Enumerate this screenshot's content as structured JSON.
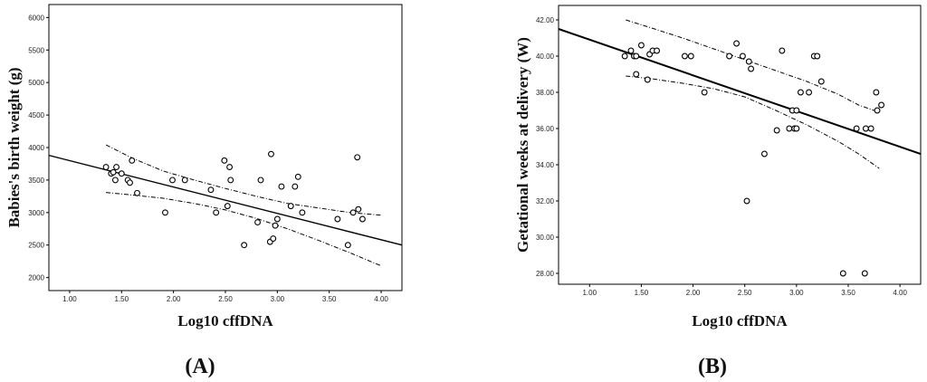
{
  "chart_data": [
    {
      "type": "scatter",
      "panel_label": "(A)",
      "xlabel": "Log10 cffDNA",
      "ylabel": "Babies's birth weight (g)",
      "xlim": [
        0.8,
        4.2
      ],
      "ylim": [
        1800,
        6200
      ],
      "xticks": [
        "1.00",
        "1.50",
        "2.00",
        "2.50",
        "3.00",
        "3.50",
        "4.00"
      ],
      "yticks": [
        "2000",
        "2500",
        "3000",
        "3500",
        "4000",
        "4500",
        "5000",
        "5500",
        "6000"
      ],
      "x": [
        1.35,
        1.4,
        1.42,
        1.45,
        1.44,
        1.5,
        1.56,
        1.58,
        1.6,
        1.65,
        1.92,
        1.99,
        2.11,
        2.36,
        2.41,
        2.49,
        2.52,
        2.54,
        2.55,
        2.68,
        2.81,
        2.84,
        2.93,
        2.94,
        2.96,
        2.98,
        3.0,
        3.04,
        3.13,
        3.17,
        3.2,
        3.24,
        3.58,
        3.68,
        3.73,
        3.77,
        3.78,
        3.82
      ],
      "y": [
        3700,
        3600,
        3620,
        3700,
        3500,
        3600,
        3500,
        3460,
        3800,
        3300,
        3000,
        3500,
        3500,
        3350,
        3000,
        3800,
        3100,
        3700,
        3500,
        2500,
        2850,
        3500,
        2550,
        3900,
        2600,
        2800,
        2900,
        3400,
        3100,
        3400,
        3550,
        3000,
        2900,
        2500,
        3000,
        3850,
        3050,
        2900
      ],
      "fit": {
        "x": [
          0.8,
          4.2
        ],
        "y": [
          3880,
          2500
        ]
      },
      "ci_upper": {
        "x": [
          1.35,
          1.6,
          1.9,
          2.2,
          2.5,
          2.8,
          3.1,
          3.4,
          3.7,
          4.0
        ],
        "y": [
          4040,
          3840,
          3640,
          3500,
          3370,
          3250,
          3140,
          3070,
          3000,
          2960
        ]
      },
      "ci_lower": {
        "x": [
          1.35,
          1.6,
          1.9,
          2.2,
          2.5,
          2.8,
          3.1,
          3.4,
          3.7,
          4.0
        ],
        "y": [
          3310,
          3270,
          3220,
          3140,
          3040,
          2910,
          2750,
          2570,
          2380,
          2180
        ]
      }
    },
    {
      "type": "scatter",
      "panel_label": "(B)",
      "xlabel": "Log10 cffDNA",
      "ylabel": "Getational weeks at delivery (W)",
      "xlim": [
        0.7,
        4.2
      ],
      "ylim": [
        27.4,
        42.8
      ],
      "xticks": [
        "1.00",
        "1.50",
        "2.00",
        "2.50",
        "3.00",
        "3.50",
        "4.00"
      ],
      "yticks": [
        "28.00",
        "30.00",
        "32.00",
        "34.00",
        "36.00",
        "38.00",
        "40.00",
        "42.00"
      ],
      "x": [
        1.34,
        1.4,
        1.43,
        1.45,
        1.45,
        1.5,
        1.56,
        1.58,
        1.61,
        1.65,
        1.92,
        1.98,
        2.11,
        2.35,
        2.42,
        2.48,
        2.52,
        2.54,
        2.56,
        2.69,
        2.81,
        2.86,
        2.93,
        2.96,
        2.98,
        3.0,
        3.0,
        3.04,
        3.12,
        3.17,
        3.2,
        3.24,
        3.45,
        3.58,
        3.66,
        3.67,
        3.72,
        3.77,
        3.78,
        3.82
      ],
      "y": [
        40.0,
        40.3,
        40.0,
        40.0,
        39.0,
        40.6,
        38.7,
        40.1,
        40.3,
        40.3,
        40.0,
        40.0,
        38.0,
        40.0,
        40.7,
        40.0,
        32.0,
        39.7,
        39.3,
        34.6,
        35.9,
        40.3,
        36.0,
        37.0,
        36.0,
        37.0,
        36.0,
        38.0,
        38.0,
        40.0,
        40.0,
        38.6,
        28.0,
        36.0,
        28.0,
        36.0,
        36.0,
        38.0,
        37.0,
        37.3
      ],
      "fit": {
        "x": [
          0.7,
          4.2
        ],
        "y": [
          41.5,
          34.6
        ]
      },
      "ci_upper": {
        "x": [
          1.35,
          1.6,
          1.9,
          2.2,
          2.5,
          2.8,
          3.1,
          3.4,
          3.6,
          3.8
        ],
        "y": [
          42.0,
          41.55,
          41.0,
          40.4,
          39.8,
          39.2,
          38.6,
          37.9,
          37.3,
          36.9
        ]
      },
      "ci_lower": {
        "x": [
          1.35,
          1.6,
          1.9,
          2.2,
          2.5,
          2.8,
          3.1,
          3.4,
          3.6,
          3.8
        ],
        "y": [
          38.9,
          38.75,
          38.5,
          38.2,
          37.75,
          37.0,
          36.2,
          35.3,
          34.6,
          33.8
        ]
      }
    }
  ]
}
